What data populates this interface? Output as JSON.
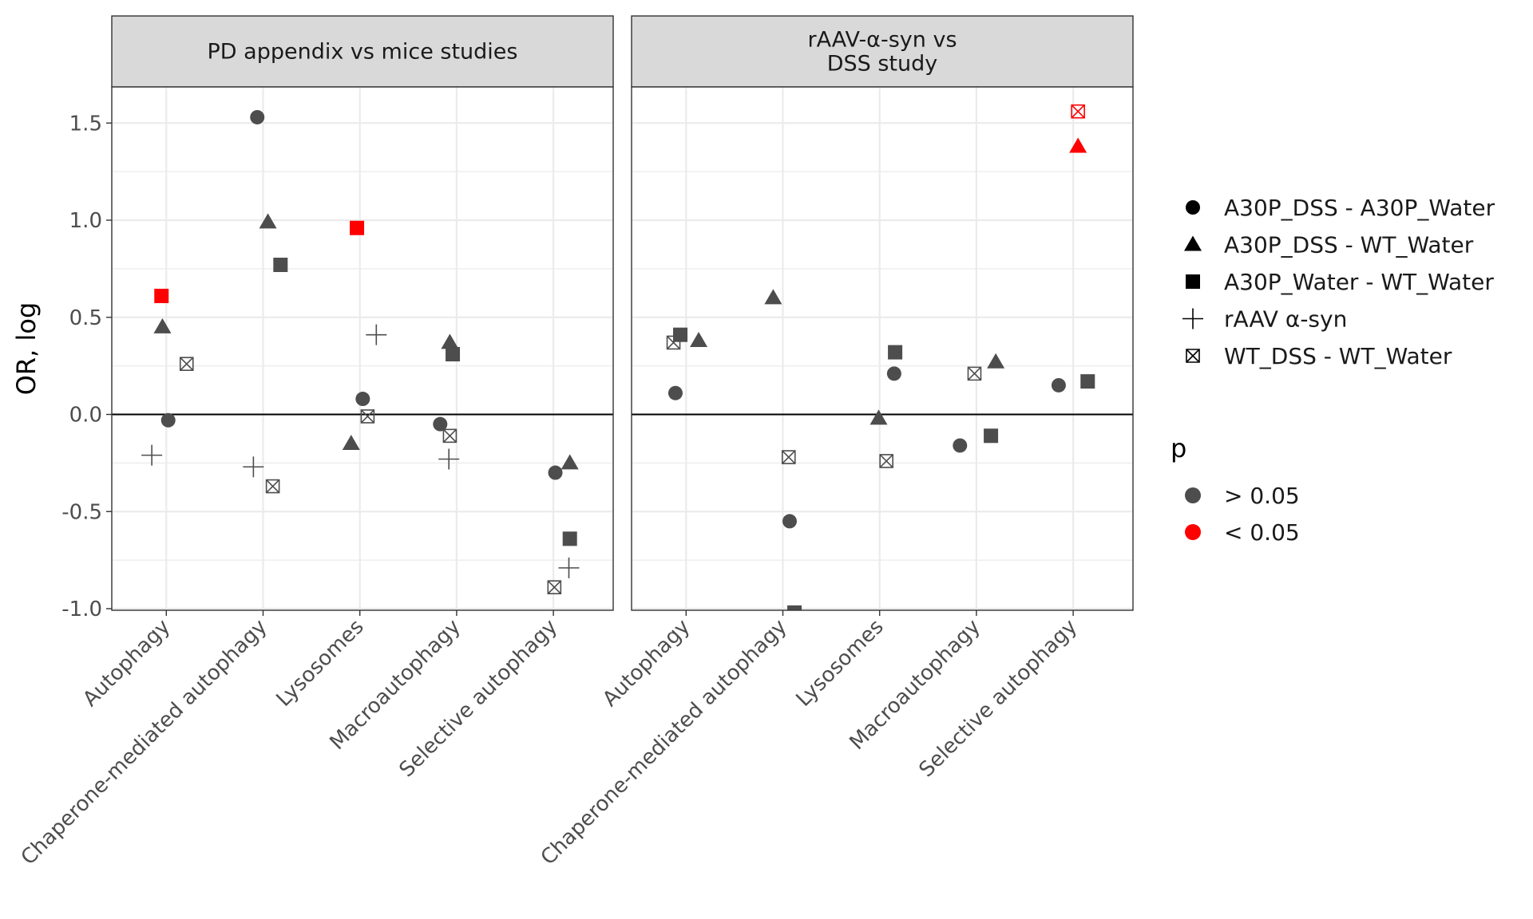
{
  "chart_data": {
    "type": "scatter",
    "ylabel": "OR, log",
    "ylim": [
      -1.02,
      1.68
    ],
    "yticks": [
      -1.0,
      -0.5,
      0.0,
      0.5,
      1.0,
      1.5
    ],
    "ytick_labels": [
      "-1.0",
      "-0.5",
      "0.0",
      "0.5",
      "1.0",
      "1.5"
    ],
    "categories": [
      "Autophagy",
      "Chaperone-mediated autophagy",
      "Lysosomes",
      "Macroautophagy",
      "Selective autophagy"
    ],
    "reference_line": 0,
    "grid": true,
    "panels": [
      {
        "title_lines": [
          "PD appendix vs mice studies"
        ],
        "points": [
          {
            "cat": 0,
            "offset": -0.05,
            "y": 0.61,
            "shape": "square",
            "p": "< 0.05",
            "series": "A30P_Water - WT_Water"
          },
          {
            "cat": 0,
            "offset": -0.04,
            "y": 0.45,
            "shape": "triangle",
            "p": "> 0.05",
            "series": "A30P_DSS - WT_Water"
          },
          {
            "cat": 0,
            "offset": 0.21,
            "y": 0.26,
            "shape": "xsquare",
            "p": "> 0.05",
            "series": "WT_DSS - WT_Water"
          },
          {
            "cat": 0,
            "offset": 0.02,
            "y": -0.03,
            "shape": "circle",
            "p": "> 0.05",
            "series": "A30P_DSS - A30P_Water"
          },
          {
            "cat": 0,
            "offset": -0.15,
            "y": -0.21,
            "shape": "plus",
            "p": "> 0.05",
            "series": "rAAV α-syn"
          },
          {
            "cat": 1,
            "offset": -0.06,
            "y": 1.53,
            "shape": "circle",
            "p": "> 0.05",
            "series": "A30P_DSS - A30P_Water"
          },
          {
            "cat": 1,
            "offset": 0.05,
            "y": 0.99,
            "shape": "triangle",
            "p": "> 0.05",
            "series": "A30P_DSS - WT_Water"
          },
          {
            "cat": 1,
            "offset": 0.18,
            "y": 0.77,
            "shape": "square",
            "p": "> 0.05",
            "series": "A30P_Water - WT_Water"
          },
          {
            "cat": 1,
            "offset": -0.1,
            "y": -0.27,
            "shape": "plus",
            "p": "> 0.05",
            "series": "rAAV α-syn"
          },
          {
            "cat": 1,
            "offset": 0.1,
            "y": -0.37,
            "shape": "xsquare",
            "p": "> 0.05",
            "series": "WT_DSS - WT_Water"
          },
          {
            "cat": 2,
            "offset": -0.03,
            "y": 0.96,
            "shape": "square",
            "p": "< 0.05",
            "series": "A30P_Water - WT_Water"
          },
          {
            "cat": 2,
            "offset": 0.17,
            "y": 0.41,
            "shape": "plus",
            "p": "> 0.05",
            "series": "rAAV α-syn"
          },
          {
            "cat": 2,
            "offset": 0.03,
            "y": 0.08,
            "shape": "circle",
            "p": "> 0.05",
            "series": "A30P_DSS - A30P_Water"
          },
          {
            "cat": 2,
            "offset": 0.08,
            "y": -0.01,
            "shape": "xsquare",
            "p": "> 0.05",
            "series": "WT_DSS - WT_Water"
          },
          {
            "cat": 2,
            "offset": -0.09,
            "y": -0.15,
            "shape": "triangle",
            "p": "> 0.05",
            "series": "A30P_DSS - WT_Water"
          },
          {
            "cat": 3,
            "offset": -0.07,
            "y": 0.37,
            "shape": "triangle",
            "p": "> 0.05",
            "series": "A30P_DSS - WT_Water"
          },
          {
            "cat": 3,
            "offset": -0.04,
            "y": 0.31,
            "shape": "square",
            "p": "> 0.05",
            "series": "A30P_Water - WT_Water"
          },
          {
            "cat": 3,
            "offset": -0.17,
            "y": -0.05,
            "shape": "circle",
            "p": "> 0.05",
            "series": "A30P_DSS - A30P_Water"
          },
          {
            "cat": 3,
            "offset": -0.07,
            "y": -0.11,
            "shape": "xsquare",
            "p": "> 0.05",
            "series": "WT_DSS - WT_Water"
          },
          {
            "cat": 3,
            "offset": -0.08,
            "y": -0.23,
            "shape": "plus",
            "p": "> 0.05",
            "series": "rAAV α-syn"
          },
          {
            "cat": 4,
            "offset": 0.17,
            "y": -0.25,
            "shape": "triangle",
            "p": "> 0.05",
            "series": "A30P_DSS - WT_Water"
          },
          {
            "cat": 4,
            "offset": 0.02,
            "y": -0.3,
            "shape": "circle",
            "p": "> 0.05",
            "series": "A30P_DSS - A30P_Water"
          },
          {
            "cat": 4,
            "offset": 0.17,
            "y": -0.64,
            "shape": "square",
            "p": "> 0.05",
            "series": "A30P_Water - WT_Water"
          },
          {
            "cat": 4,
            "offset": 0.16,
            "y": -0.79,
            "shape": "plus",
            "p": "> 0.05",
            "series": "rAAV α-syn"
          },
          {
            "cat": 4,
            "offset": 0.01,
            "y": -0.89,
            "shape": "xsquare",
            "p": "> 0.05",
            "series": "WT_DSS - WT_Water"
          }
        ]
      },
      {
        "title_lines": [
          "rAAV-α-syn vs",
          "DSS study"
        ],
        "points": [
          {
            "cat": 0,
            "offset": -0.06,
            "y": 0.41,
            "shape": "square",
            "p": "> 0.05",
            "series": "A30P_Water - WT_Water"
          },
          {
            "cat": 0,
            "offset": -0.13,
            "y": 0.37,
            "shape": "xsquare",
            "p": "> 0.05",
            "series": "WT_DSS - WT_Water"
          },
          {
            "cat": 0,
            "offset": 0.13,
            "y": 0.38,
            "shape": "triangle",
            "p": "> 0.05",
            "series": "A30P_DSS - WT_Water"
          },
          {
            "cat": 0,
            "offset": -0.11,
            "y": 0.11,
            "shape": "circle",
            "p": "> 0.05",
            "series": "A30P_DSS - A30P_Water"
          },
          {
            "cat": 1,
            "offset": -0.1,
            "y": 0.6,
            "shape": "triangle",
            "p": "> 0.05",
            "series": "A30P_DSS - WT_Water"
          },
          {
            "cat": 1,
            "offset": 0.06,
            "y": -0.22,
            "shape": "xsquare",
            "p": "> 0.05",
            "series": "WT_DSS - WT_Water"
          },
          {
            "cat": 1,
            "offset": 0.07,
            "y": -0.55,
            "shape": "circle",
            "p": "> 0.05",
            "series": "A30P_DSS - A30P_Water"
          },
          {
            "cat": 1,
            "offset": 0.12,
            "y": -1.02,
            "shape": "square",
            "p": "> 0.05",
            "series": "A30P_Water - WT_Water"
          },
          {
            "cat": 2,
            "offset": 0.16,
            "y": 0.32,
            "shape": "square",
            "p": "> 0.05",
            "series": "A30P_Water - WT_Water"
          },
          {
            "cat": 2,
            "offset": 0.15,
            "y": 0.21,
            "shape": "circle",
            "p": "> 0.05",
            "series": "A30P_DSS - A30P_Water"
          },
          {
            "cat": 2,
            "offset": -0.01,
            "y": -0.02,
            "shape": "triangle",
            "p": "> 0.05",
            "series": "A30P_DSS - WT_Water"
          },
          {
            "cat": 2,
            "offset": 0.07,
            "y": -0.24,
            "shape": "xsquare",
            "p": "> 0.05",
            "series": "WT_DSS - WT_Water"
          },
          {
            "cat": 3,
            "offset": 0.2,
            "y": 0.27,
            "shape": "triangle",
            "p": "> 0.05",
            "series": "A30P_DSS - WT_Water"
          },
          {
            "cat": 3,
            "offset": -0.02,
            "y": 0.21,
            "shape": "xsquare",
            "p": "> 0.05",
            "series": "WT_DSS - WT_Water"
          },
          {
            "cat": 3,
            "offset": 0.15,
            "y": -0.11,
            "shape": "square",
            "p": "> 0.05",
            "series": "A30P_Water - WT_Water"
          },
          {
            "cat": 3,
            "offset": -0.17,
            "y": -0.16,
            "shape": "circle",
            "p": "> 0.05",
            "series": "A30P_DSS - A30P_Water"
          },
          {
            "cat": 4,
            "offset": 0.05,
            "y": 1.56,
            "shape": "xsquare",
            "p": "< 0.05",
            "series": "WT_DSS - WT_Water"
          },
          {
            "cat": 4,
            "offset": 0.05,
            "y": 1.38,
            "shape": "triangle",
            "p": "< 0.05",
            "series": "A30P_DSS - WT_Water"
          },
          {
            "cat": 4,
            "offset": 0.15,
            "y": 0.17,
            "shape": "square",
            "p": "> 0.05",
            "series": "A30P_Water - WT_Water"
          },
          {
            "cat": 4,
            "offset": -0.15,
            "y": 0.15,
            "shape": "circle",
            "p": "> 0.05",
            "series": "A30P_DSS - A30P_Water"
          }
        ]
      }
    ],
    "legend_shape": {
      "title": "",
      "entries": [
        {
          "label": "A30P_DSS - A30P_Water",
          "shape": "circle"
        },
        {
          "label": "A30P_DSS - WT_Water",
          "shape": "triangle"
        },
        {
          "label": "A30P_Water - WT_Water",
          "shape": "square"
        },
        {
          "label": "rAAV α-syn",
          "shape": "plus"
        },
        {
          "label": "WT_DSS - WT_Water",
          "shape": "xsquare"
        }
      ]
    },
    "legend_color": {
      "title": "p",
      "entries": [
        {
          "label": "> 0.05",
          "color": "#4d4d4d"
        },
        {
          "label": "< 0.05",
          "color": "#ff0000"
        }
      ]
    },
    "legend_position": "right",
    "colors": {
      "not_significant": "#4d4d4d",
      "significant": "#ff0000",
      "strip_fill": "#d9d9d9",
      "grid": "#ebebeb"
    }
  }
}
